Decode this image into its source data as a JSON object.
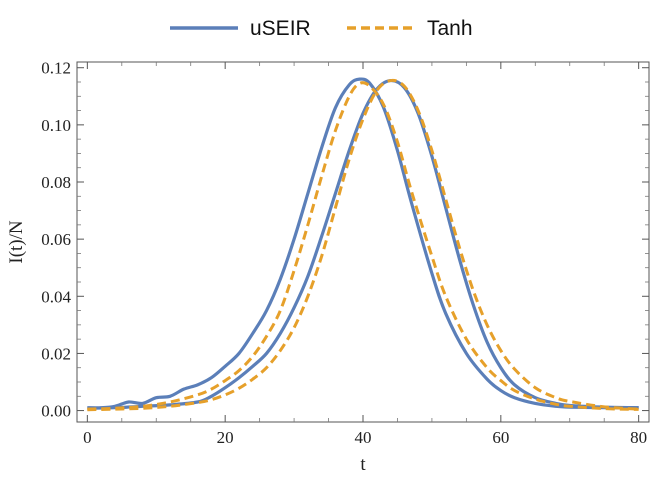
{
  "chart_data": {
    "type": "line",
    "title": "",
    "xlabel": "t",
    "ylabel": "I(t)/N",
    "xlim": [
      -1.5,
      81.5
    ],
    "ylim": [
      -0.004,
      0.122
    ],
    "xticks": [
      0,
      20,
      40,
      60,
      80
    ],
    "xtick_labels": [
      "0",
      "20",
      "40",
      "60",
      "80"
    ],
    "yticks": [
      0.0,
      0.02,
      0.04,
      0.06,
      0.08,
      0.1,
      0.12
    ],
    "ytick_labels": [
      "0.00",
      "0.02",
      "0.04",
      "0.06",
      "0.08",
      "0.10",
      "0.12"
    ],
    "grid": false,
    "legend_position": "top-center",
    "legend": [
      {
        "label": "uSEIR",
        "style": "solid",
        "color": "#5b7fb9"
      },
      {
        "label": "Tanh",
        "style": "dashed",
        "color": "#e6a02a"
      }
    ],
    "series": [
      {
        "name": "uSEIR",
        "style": "solid",
        "color": "#5b7fb9",
        "x": [
          0,
          2,
          4,
          6,
          8,
          10,
          12,
          14,
          16,
          18,
          20,
          22,
          24,
          26,
          28,
          30,
          32,
          34,
          36,
          38,
          39.5,
          41,
          43,
          45,
          47,
          50,
          52,
          55,
          58,
          60,
          62,
          65,
          68,
          70,
          75,
          80
        ],
        "y": [
          0.001,
          0.001,
          0.0015,
          0.003,
          0.0025,
          0.0045,
          0.005,
          0.0075,
          0.009,
          0.0115,
          0.0155,
          0.02,
          0.027,
          0.035,
          0.046,
          0.06,
          0.076,
          0.092,
          0.106,
          0.114,
          0.116,
          0.1145,
          0.106,
          0.091,
          0.073,
          0.048,
          0.034,
          0.02,
          0.011,
          0.007,
          0.0045,
          0.0025,
          0.0015,
          0.0012,
          0.001,
          0.001
        ]
      },
      {
        "name": "uSEIR",
        "style": "solid",
        "color": "#5b7fb9",
        "x": [
          0,
          4,
          8,
          12,
          16,
          18,
          20,
          22,
          24,
          26,
          28,
          30,
          32,
          34,
          36,
          38,
          40,
          42,
          44,
          46,
          48,
          50,
          52,
          54,
          56,
          58,
          60,
          62,
          65,
          68,
          70,
          75,
          80
        ],
        "y": [
          0.0008,
          0.001,
          0.0015,
          0.002,
          0.003,
          0.005,
          0.008,
          0.0115,
          0.0155,
          0.02,
          0.027,
          0.036,
          0.047,
          0.061,
          0.076,
          0.091,
          0.104,
          0.1125,
          0.1155,
          0.113,
          0.104,
          0.089,
          0.071,
          0.053,
          0.037,
          0.024,
          0.015,
          0.009,
          0.0045,
          0.0025,
          0.0018,
          0.0012,
          0.001
        ]
      },
      {
        "name": "Tanh",
        "style": "dashed",
        "color": "#e6a02a",
        "x": [
          0,
          4,
          8,
          12,
          16,
          18,
          20,
          22,
          24,
          26,
          28,
          30,
          32,
          34,
          36,
          38,
          39.5,
          41,
          43,
          45,
          47,
          50,
          52,
          55,
          58,
          60,
          62,
          65,
          68,
          70,
          75,
          80
        ],
        "y": [
          0.0005,
          0.0008,
          0.0015,
          0.003,
          0.0055,
          0.0075,
          0.0105,
          0.014,
          0.019,
          0.026,
          0.035,
          0.049,
          0.065,
          0.082,
          0.098,
          0.11,
          0.1145,
          0.1135,
          0.107,
          0.094,
          0.077,
          0.054,
          0.04,
          0.025,
          0.015,
          0.0105,
          0.007,
          0.004,
          0.0022,
          0.0015,
          0.0007,
          0.0004
        ]
      },
      {
        "name": "Tanh",
        "style": "dashed",
        "color": "#e6a02a",
        "x": [
          0,
          4,
          8,
          12,
          16,
          18,
          20,
          22,
          24,
          26,
          28,
          30,
          32,
          34,
          36,
          38,
          40,
          42,
          44,
          46,
          48,
          50,
          52,
          54,
          56,
          58,
          60,
          62,
          65,
          68,
          70,
          75,
          80
        ],
        "y": [
          0.0003,
          0.0005,
          0.0008,
          0.0015,
          0.0028,
          0.0038,
          0.0055,
          0.0078,
          0.011,
          0.015,
          0.021,
          0.029,
          0.04,
          0.054,
          0.071,
          0.088,
          0.102,
          0.112,
          0.1155,
          0.1135,
          0.105,
          0.091,
          0.074,
          0.057,
          0.042,
          0.03,
          0.021,
          0.0145,
          0.008,
          0.0045,
          0.0032,
          0.0013,
          0.0005
        ]
      }
    ]
  }
}
